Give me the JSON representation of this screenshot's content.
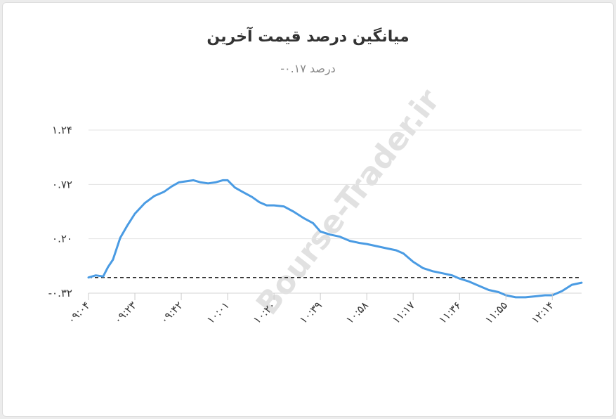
{
  "watermark_text": "Bourse-Trader.ir",
  "colors": {
    "line": "#4a9be3",
    "grid": "#e3e3e3",
    "reference": "#222222"
  },
  "chart_data": {
    "type": "line",
    "title": "میانگین درصد قیمت آخرین",
    "subtitle": "درصد ۰.۱۷-",
    "y_ticks": [
      -0.32,
      0.2,
      0.72,
      1.24
    ],
    "y_tick_labels": [
      "-۰.۳۲",
      "۰.۲۰",
      "۰.۷۲",
      "۱.۲۴"
    ],
    "ylim": [
      -0.32,
      1.24
    ],
    "x_ticks": [
      "09:04",
      "09:23",
      "09:42",
      "10:01",
      "10:20",
      "10:39",
      "10:58",
      "11:17",
      "11:36",
      "11:55",
      "12:14"
    ],
    "x_tick_labels": [
      "۰۹:۰۴",
      "۰۹:۲۳",
      "۰۹:۴۲",
      "۱۰:۰۱",
      "۱۰:۲۰",
      "۱۰:۳۹",
      "۱۰:۵۸",
      "۱۱:۱۷",
      "۱۱:۳۶",
      "۱۱:۵۵",
      "۱۲:۱۴"
    ],
    "reference_line": {
      "value": -0.17,
      "style": "dashed"
    },
    "grid": true,
    "series": [
      {
        "x": [
          "09:04",
          "09:07",
          "09:10",
          "09:12",
          "09:14",
          "09:17",
          "09:20",
          "09:23",
          "09:27",
          "09:31",
          "09:35",
          "09:38",
          "09:41",
          "09:44",
          "09:47",
          "09:50",
          "09:53",
          "09:56",
          "09:59",
          "10:01",
          "10:04",
          "10:07",
          "10:11",
          "10:14",
          "10:17",
          "10:20",
          "10:24",
          "10:28",
          "10:32",
          "10:36",
          "10:39",
          "10:43",
          "10:47",
          "10:51",
          "10:55",
          "10:58",
          "11:02",
          "11:06",
          "11:10",
          "11:13",
          "11:17",
          "11:21",
          "11:25",
          "11:29",
          "11:33",
          "11:36",
          "11:40",
          "11:44",
          "11:48",
          "11:52",
          "11:55",
          "11:59",
          "12:03",
          "12:07",
          "12:11",
          "12:14",
          "12:18",
          "12:22",
          "12:26"
        ],
        "values": [
          -0.17,
          -0.15,
          -0.16,
          -0.07,
          0.0,
          0.21,
          0.33,
          0.44,
          0.54,
          0.61,
          0.65,
          0.7,
          0.74,
          0.75,
          0.76,
          0.74,
          0.73,
          0.74,
          0.76,
          0.76,
          0.69,
          0.65,
          0.6,
          0.55,
          0.52,
          0.52,
          0.51,
          0.46,
          0.4,
          0.35,
          0.27,
          0.24,
          0.22,
          0.18,
          0.16,
          0.15,
          0.13,
          0.11,
          0.09,
          0.06,
          -0.02,
          -0.08,
          -0.11,
          -0.13,
          -0.15,
          -0.18,
          -0.21,
          -0.25,
          -0.29,
          -0.31,
          -0.34,
          -0.36,
          -0.36,
          -0.35,
          -0.34,
          -0.34,
          -0.3,
          -0.24,
          -0.22
        ]
      }
    ]
  }
}
